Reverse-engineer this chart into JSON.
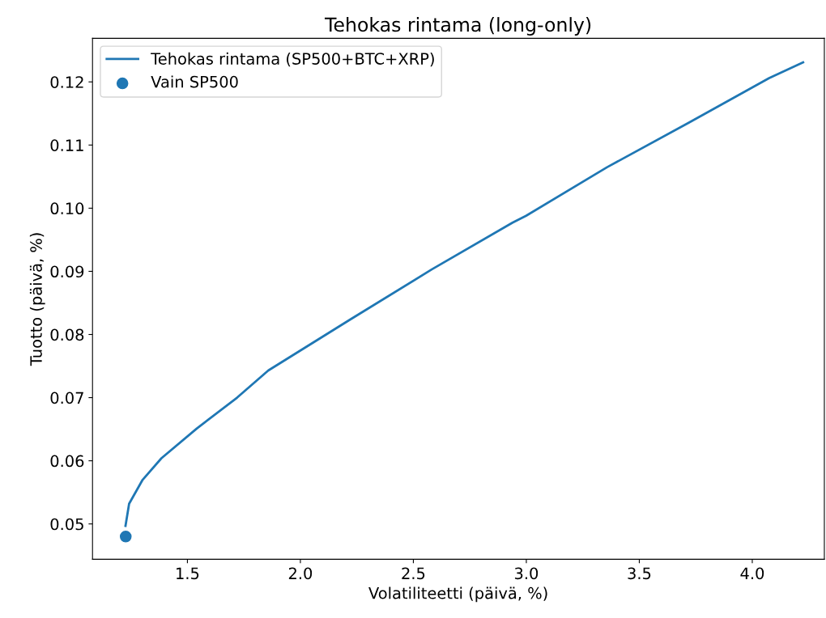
{
  "chart_data": {
    "type": "line",
    "title": "Tehokas rintama (long-only)",
    "xlabel": "Volatiliteetti (päivä, %)",
    "ylabel": "Tuotto (päivä, %)",
    "series": [
      {
        "name": "Tehokas rintama (SP500+BTC+XRP)",
        "color": "#1f77b4",
        "x": [
          1.226,
          1.242,
          1.302,
          1.385,
          1.541,
          1.72,
          1.858,
          2.222,
          2.581,
          2.939,
          2.999,
          3.358,
          3.717,
          4.075,
          4.225
        ],
        "values": [
          0.0497,
          0.0532,
          0.057,
          0.0604,
          0.0651,
          0.07,
          0.0743,
          0.0824,
          0.0903,
          0.0977,
          0.0988,
          0.1065,
          0.1135,
          0.1206,
          0.1231
        ]
      },
      {
        "name": "Vain SP500",
        "type": "scatter",
        "color": "#1f77b4",
        "x": [
          1.227
        ],
        "values": [
          0.048
        ]
      }
    ],
    "xlim": [
      1.08,
      4.319
    ],
    "ylim": [
      0.0444,
      0.1269
    ],
    "xticks": [
      {
        "value": 1.5,
        "label": "1.5"
      },
      {
        "value": 2.0,
        "label": "2.0"
      },
      {
        "value": 2.5,
        "label": "2.5"
      },
      {
        "value": 3.0,
        "label": "3.0"
      },
      {
        "value": 3.5,
        "label": "3.5"
      },
      {
        "value": 4.0,
        "label": "4.0"
      }
    ],
    "yticks": [
      0.05,
      0.06,
      0.07,
      0.08,
      0.09,
      {
        "value": 0.1,
        "label": "0.10"
      },
      0.11,
      0.12
    ],
    "legend": "top left",
    "grid": false
  }
}
